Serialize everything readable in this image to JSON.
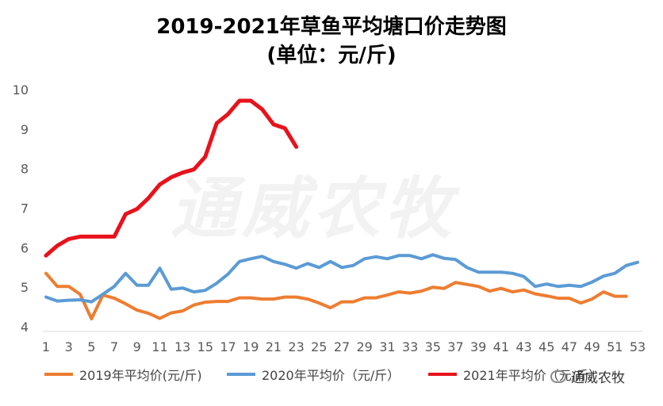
{
  "title_line1": "2019-2021年草鱼平均塘口价走势图",
  "title_line2": "(单位：元/斤)",
  "watermark_text": "通威农牧",
  "wechat_label": "通威农牧",
  "chart_data": {
    "type": "line",
    "title": "2019-2021年草鱼平均塘口价走势图 (单位：元/斤)",
    "xlabel": "",
    "ylabel": "",
    "ylim": [
      4,
      10
    ],
    "yticks": [
      4,
      5,
      6,
      7,
      8,
      9,
      10
    ],
    "xticks": [
      1,
      3,
      5,
      7,
      9,
      11,
      13,
      15,
      17,
      19,
      21,
      23,
      25,
      27,
      29,
      31,
      33,
      35,
      37,
      39,
      41,
      43,
      45,
      47,
      49,
      51,
      53
    ],
    "grid": false,
    "legend": "bottom",
    "series": [
      {
        "name": "2019年平均价(元/斤)",
        "color": "#ED7D31",
        "x": [
          1,
          2,
          3,
          4,
          5,
          6,
          7,
          8,
          9,
          10,
          11,
          12,
          13,
          14,
          15,
          16,
          17,
          18,
          19,
          20,
          21,
          22,
          23,
          24,
          25,
          26,
          27,
          28,
          29,
          30,
          31,
          32,
          33,
          34,
          35,
          36,
          37,
          38,
          39,
          40,
          41,
          42,
          43,
          44,
          45,
          46,
          47,
          48,
          49,
          50,
          51,
          52
        ],
        "values": [
          5.35,
          5.02,
          5.02,
          4.82,
          4.2,
          4.8,
          4.72,
          4.58,
          4.42,
          4.34,
          4.21,
          4.35,
          4.4,
          4.55,
          4.62,
          4.64,
          4.64,
          4.73,
          4.73,
          4.7,
          4.7,
          4.75,
          4.75,
          4.7,
          4.6,
          4.48,
          4.63,
          4.63,
          4.73,
          4.73,
          4.8,
          4.88,
          4.85,
          4.9,
          5.0,
          4.97,
          5.12,
          5.07,
          5.02,
          4.9,
          4.97,
          4.88,
          4.93,
          4.83,
          4.78,
          4.72,
          4.72,
          4.6,
          4.7,
          4.88,
          4.77,
          4.77
        ]
      },
      {
        "name": "2020年平均价（元/斤）",
        "color": "#5B9BD5",
        "x": [
          1,
          2,
          3,
          4,
          5,
          6,
          7,
          8,
          9,
          10,
          11,
          12,
          13,
          14,
          15,
          16,
          17,
          18,
          19,
          20,
          21,
          22,
          23,
          24,
          25,
          26,
          27,
          28,
          29,
          30,
          31,
          32,
          33,
          34,
          35,
          36,
          37,
          38,
          39,
          40,
          41,
          42,
          43,
          44,
          45,
          46,
          47,
          48,
          49,
          50,
          51,
          52,
          53
        ],
        "values": [
          4.75,
          4.65,
          4.67,
          4.68,
          4.63,
          4.82,
          5.02,
          5.35,
          5.05,
          5.05,
          5.48,
          4.95,
          4.98,
          4.88,
          4.92,
          5.1,
          5.33,
          5.65,
          5.72,
          5.78,
          5.65,
          5.58,
          5.48,
          5.6,
          5.5,
          5.65,
          5.5,
          5.55,
          5.72,
          5.77,
          5.72,
          5.8,
          5.8,
          5.72,
          5.82,
          5.73,
          5.7,
          5.5,
          5.38,
          5.38,
          5.38,
          5.35,
          5.27,
          5.02,
          5.08,
          5.02,
          5.05,
          5.02,
          5.13,
          5.28,
          5.35,
          5.55,
          5.63
        ]
      },
      {
        "name": "2021年平均价（元/斤）",
        "color": "#E8121B",
        "x": [
          1,
          2,
          3,
          4,
          5,
          6,
          7,
          8,
          9,
          10,
          11,
          12,
          13,
          14,
          15,
          16,
          17,
          18,
          19,
          20,
          21,
          22,
          23
        ],
        "values": [
          5.8,
          6.05,
          6.22,
          6.28,
          6.28,
          6.28,
          6.28,
          6.85,
          6.98,
          7.25,
          7.6,
          7.78,
          7.9,
          7.98,
          8.3,
          9.15,
          9.38,
          9.72,
          9.72,
          9.5,
          9.12,
          9.02,
          8.55
        ]
      }
    ]
  }
}
